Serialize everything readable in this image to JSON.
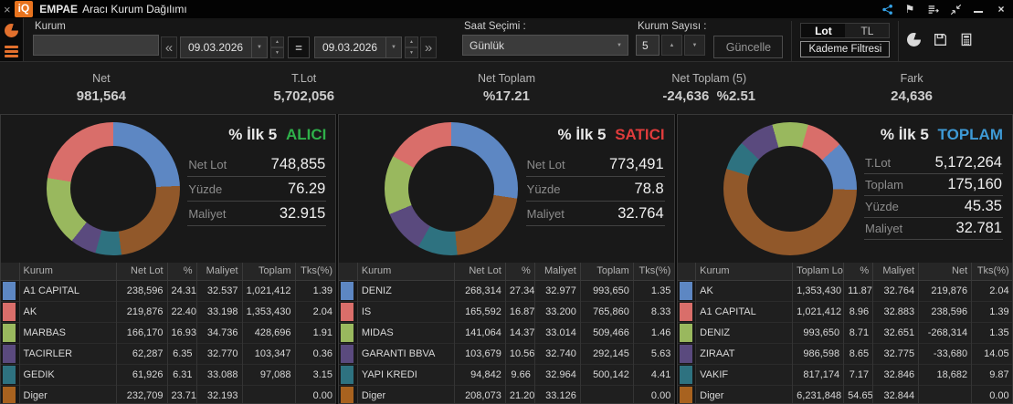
{
  "titlebar": {
    "logo_text": "iQ",
    "title_bold": "EMPAE",
    "title_rest": "Aracı Kurum Dağılımı"
  },
  "toolbar": {
    "kurum_label": "Kurum",
    "kurum_value": "",
    "prev_label": "«",
    "next_label": "»",
    "equals_label": "=",
    "date_from": "09.03.2026",
    "date_to": "09.03.2026",
    "saat_label": "Saat Seçimi :",
    "saat_value": "Günlük",
    "kurum_sayisi_label": "Kurum Sayısı :",
    "kurum_sayisi_value": "5",
    "guncelle_label": "Güncelle",
    "lot_tab": "Lot",
    "tl_tab": "TL",
    "kademe_label": "Kademe Filtresi"
  },
  "stats": [
    {
      "label": "Net",
      "value": "981,564"
    },
    {
      "label": "T.Lot",
      "value": "5,702,056"
    },
    {
      "label": "Net Toplam",
      "value": "%17.21"
    },
    {
      "label": "Net Toplam (5)",
      "value": "-24,636  %2.51"
    },
    {
      "label": "Fark",
      "value": "24,636"
    }
  ],
  "chart_data": [
    {
      "type": "donut",
      "title": "% İlk 5 ALICI",
      "from_deg": 0,
      "segments": [
        {
          "label": "A1 CAPITAL",
          "pct": 24.31,
          "color": "#5d87c3"
        },
        {
          "label": "Diger",
          "pct": 23.71,
          "color": "#91582a"
        },
        {
          "label": "GEDIK",
          "pct": 6.31,
          "color": "#2e7280"
        },
        {
          "label": "TACIRLER",
          "pct": 6.35,
          "color": "#5a4a7e"
        },
        {
          "label": "MARBAS",
          "pct": 16.93,
          "color": "#99b85e"
        },
        {
          "label": "AK",
          "pct": 22.4,
          "color": "#d96e6a"
        }
      ]
    },
    {
      "type": "donut",
      "title": "% İlk 5 SATICI",
      "from_deg": 0,
      "segments": [
        {
          "label": "DENIZ",
          "pct": 27.34,
          "color": "#5d87c3"
        },
        {
          "label": "Diger",
          "pct": 21.2,
          "color": "#91582a"
        },
        {
          "label": "YAPI KREDI",
          "pct": 9.66,
          "color": "#2e7280"
        },
        {
          "label": "GARANTI BBVA",
          "pct": 10.56,
          "color": "#5a4a7e"
        },
        {
          "label": "MIDAS",
          "pct": 14.37,
          "color": "#99b85e"
        },
        {
          "label": "IS",
          "pct": 16.87,
          "color": "#d96e6a"
        }
      ]
    },
    {
      "type": "donut",
      "title": "% İlk 5 TOPLAM",
      "from_deg": 48,
      "segments": [
        {
          "label": "AK",
          "pct": 11.87,
          "color": "#5d87c3"
        },
        {
          "label": "Diger",
          "pct": 54.65,
          "color": "#91582a"
        },
        {
          "label": "VAKIF",
          "pct": 7.17,
          "color": "#2e7280"
        },
        {
          "label": "ZIRAAT",
          "pct": 8.65,
          "color": "#5a4a7e"
        },
        {
          "label": "DENIZ",
          "pct": 8.71,
          "color": "#99b85e"
        },
        {
          "label": "A1 CAPITAL",
          "pct": 8.96,
          "color": "#d96e6a"
        }
      ]
    }
  ],
  "panels": [
    {
      "title_prefix": "% İlk 5",
      "title_key": "ALICI",
      "title_color": "#2fb14a",
      "info": [
        {
          "label": "Net Lot",
          "value": "748,855"
        },
        {
          "label": "Yüzde",
          "value": "76.29"
        },
        {
          "label": "Maliyet",
          "value": "32.915"
        }
      ],
      "columns": [
        "Kurum",
        "Net Lot",
        "%",
        "Maliyet",
        "Toplam",
        "Tks(%)"
      ],
      "rows": [
        {
          "color": "#5d87c3",
          "cells": [
            "A1 CAPITAL",
            "238,596",
            "24.31",
            "32.537",
            "1,021,412",
            "1.39"
          ]
        },
        {
          "color": "#d96e6a",
          "cells": [
            "AK",
            "219,876",
            "22.40",
            "33.198",
            "1,353,430",
            "2.04"
          ]
        },
        {
          "color": "#99b85e",
          "cells": [
            "MARBAS",
            "166,170",
            "16.93",
            "34.736",
            "428,696",
            "1.91"
          ]
        },
        {
          "color": "#5a4a7e",
          "cells": [
            "TACIRLER",
            "62,287",
            "6.35",
            "32.770",
            "103,347",
            "0.36"
          ]
        },
        {
          "color": "#2e7280",
          "cells": [
            "GEDIK",
            "61,926",
            "6.31",
            "33.088",
            "97,088",
            "3.15"
          ]
        },
        {
          "color": "#a8621f",
          "cells": [
            "Diger",
            "232,709",
            "23.71",
            "32.193",
            "",
            "0.00"
          ]
        }
      ]
    },
    {
      "title_prefix": "% İlk 5",
      "title_key": "SATICI",
      "title_color": "#e03c3c",
      "info": [
        {
          "label": "Net Lot",
          "value": "773,491"
        },
        {
          "label": "Yüzde",
          "value": "78.8"
        },
        {
          "label": "Maliyet",
          "value": "32.764"
        }
      ],
      "columns": [
        "Kurum",
        "Net Lot",
        "%",
        "Maliyet",
        "Toplam",
        "Tks(%)"
      ],
      "rows": [
        {
          "color": "#5d87c3",
          "cells": [
            "DENIZ",
            "268,314",
            "27.34",
            "32.977",
            "993,650",
            "1.35"
          ]
        },
        {
          "color": "#d96e6a",
          "cells": [
            "IS",
            "165,592",
            "16.87",
            "33.200",
            "765,860",
            "8.33"
          ]
        },
        {
          "color": "#99b85e",
          "cells": [
            "MIDAS",
            "141,064",
            "14.37",
            "33.014",
            "509,466",
            "1.46"
          ]
        },
        {
          "color": "#5a4a7e",
          "cells": [
            "GARANTI BBVA",
            "103,679",
            "10.56",
            "32.740",
            "292,145",
            "5.63"
          ]
        },
        {
          "color": "#2e7280",
          "cells": [
            "YAPI KREDI",
            "94,842",
            "9.66",
            "32.964",
            "500,142",
            "4.41"
          ]
        },
        {
          "color": "#a8621f",
          "cells": [
            "Diger",
            "208,073",
            "21.20",
            "33.126",
            "",
            "0.00"
          ]
        }
      ]
    },
    {
      "title_prefix": "% İlk 5",
      "title_key": "TOPLAM",
      "title_color": "#3e9ad6",
      "info": [
        {
          "label": "T.Lot",
          "value": "5,172,264"
        },
        {
          "label": "Toplam",
          "value": "175,160"
        },
        {
          "label": "Yüzde",
          "value": "45.35"
        },
        {
          "label": "Maliyet",
          "value": "32.781"
        }
      ],
      "columns": [
        "Kurum",
        "Toplam Lot",
        "%",
        "Maliyet",
        "Net",
        "Tks(%)"
      ],
      "rows": [
        {
          "color": "#5d87c3",
          "cells": [
            "AK",
            "1,353,430",
            "11.87",
            "32.764",
            "219,876",
            "2.04"
          ]
        },
        {
          "color": "#d96e6a",
          "cells": [
            "A1 CAPITAL",
            "1,021,412",
            "8.96",
            "32.883",
            "238,596",
            "1.39"
          ]
        },
        {
          "color": "#99b85e",
          "cells": [
            "DENIZ",
            "993,650",
            "8.71",
            "32.651",
            "-268,314",
            "1.35"
          ]
        },
        {
          "color": "#5a4a7e",
          "cells": [
            "ZIRAAT",
            "986,598",
            "8.65",
            "32.775",
            "-33,680",
            "14.05"
          ]
        },
        {
          "color": "#2e7280",
          "cells": [
            "VAKIF",
            "817,174",
            "7.17",
            "32.846",
            "18,682",
            "9.87"
          ]
        },
        {
          "color": "#a8621f",
          "cells": [
            "Diger",
            "6,231,848",
            "54.65",
            "32.844",
            "",
            "0.00"
          ]
        }
      ]
    }
  ]
}
